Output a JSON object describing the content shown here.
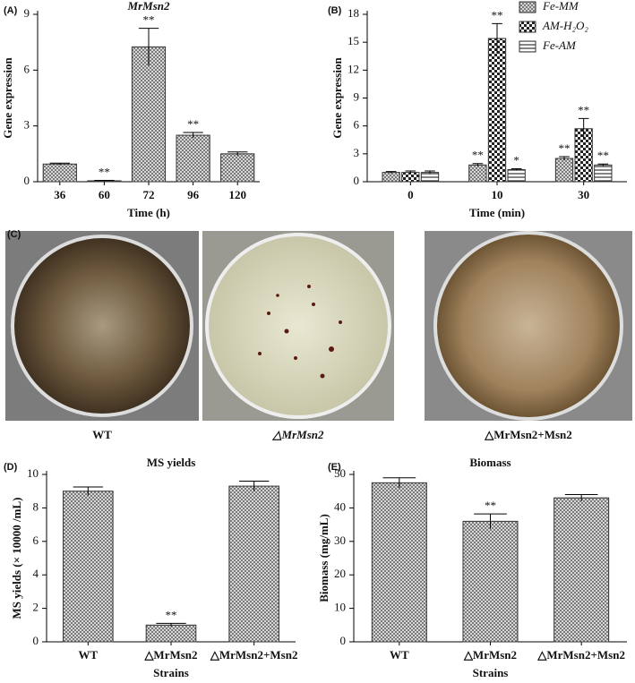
{
  "chart_data": [
    {
      "type": "bar",
      "panel": "(A)",
      "title": "MrMsn2",
      "xlabel": "Time (h)",
      "ylabel": "Gene expression",
      "categories": [
        "36",
        "60",
        "72",
        "96",
        "120"
      ],
      "ylim": [
        0,
        9
      ],
      "yticks": [
        0,
        3,
        6,
        9
      ],
      "series": [
        {
          "color": "#333333",
          "values": [
            0.95,
            0.05,
            7.25,
            2.5,
            1.5
          ],
          "errors": [
            0.05,
            0.02,
            1.0,
            0.15,
            0.1
          ],
          "annotations": [
            null,
            "**",
            "**",
            "**",
            null
          ]
        }
      ]
    },
    {
      "type": "bar",
      "panel": "(B)",
      "xlabel": "Time (min)",
      "ylabel": "Gene expression",
      "categories": [
        "0",
        "10",
        "30"
      ],
      "ylim": [
        0,
        18
      ],
      "yticks": [
        0,
        3,
        6,
        9,
        12,
        15,
        18
      ],
      "legend": "top-right",
      "series": [
        {
          "name": "Fe-MM",
          "color": "#333333",
          "values": [
            1.0,
            1.8,
            2.5
          ],
          "errors": [
            0.1,
            0.15,
            0.2
          ],
          "annotations": [
            null,
            "**",
            "**"
          ]
        },
        {
          "name": "AM-H₂O₂",
          "color": "#333333",
          "values": [
            1.0,
            15.4,
            5.7
          ],
          "errors": [
            0.15,
            1.6,
            1.1
          ],
          "annotations": [
            null,
            "**",
            "**"
          ]
        },
        {
          "name": "Fe-AM",
          "color": "#333333",
          "values": [
            1.0,
            1.3,
            1.8
          ],
          "errors": [
            0.15,
            0.1,
            0.1
          ],
          "annotations": [
            null,
            "*",
            "**"
          ]
        }
      ]
    },
    {
      "type": "bar",
      "panel": "(D)",
      "title": "MS yields",
      "xlabel": "Strains",
      "ylabel": "MS yields (× 10000 /mL)",
      "categories": [
        "WT",
        "△MrMsn2",
        "△MrMsn2+Msn2"
      ],
      "ylim": [
        0,
        10
      ],
      "yticks": [
        0,
        2,
        4,
        6,
        8,
        10
      ],
      "series": [
        {
          "color": "#333333",
          "values": [
            9.0,
            1.0,
            9.3
          ],
          "errors": [
            0.25,
            0.1,
            0.3
          ],
          "annotations": [
            null,
            "**",
            null
          ]
        }
      ]
    },
    {
      "type": "bar",
      "panel": "(E)",
      "title": "Biomass",
      "xlabel": "Strains",
      "ylabel": "Biomass (mg/mL)",
      "categories": [
        "WT",
        "△MrMsn2",
        "△MrMsn2+Msn2"
      ],
      "ylim": [
        0,
        50
      ],
      "yticks": [
        0,
        10,
        20,
        30,
        40,
        50
      ],
      "series": [
        {
          "color": "#333333",
          "values": [
            47.5,
            36,
            43
          ],
          "errors": [
            1.5,
            2.2,
            1.0
          ],
          "annotations": [
            null,
            "**",
            null
          ]
        }
      ]
    }
  ],
  "images": {
    "panel": "(C)",
    "labels": [
      "WT",
      "△MrMsn2",
      "△MrMsn2+Msn2"
    ]
  }
}
